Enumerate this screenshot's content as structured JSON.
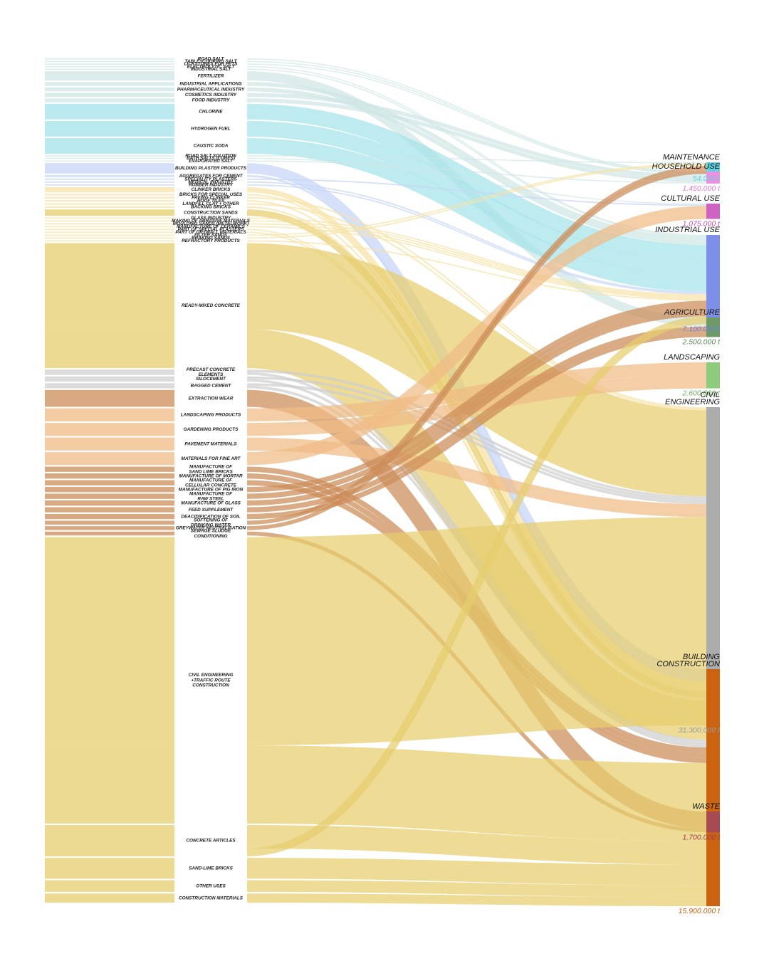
{
  "colors": {
    "salt": "#a3e3ea",
    "salt_light": "#cfe6e5",
    "gypsum": "#c6d6f7",
    "clay": "#f6e3a6",
    "sand_gravel": "#e6cd6e",
    "grey": "#cfcfcf",
    "peat": "#f0bb85",
    "limestone": "#cc8c57"
  },
  "applications": [
    {
      "id": "road-salt",
      "label": [
        "ROAD SALT"
      ],
      "color": "salt_light",
      "flows": [
        {
          "dest": "household",
          "v": 0.8
        }
      ]
    },
    {
      "id": "table-salt",
      "label": [
        "TABLE+COOKING SALT"
      ],
      "color": "salt_light",
      "flows": [
        {
          "dest": "household",
          "v": 0.8
        }
      ]
    },
    {
      "id": "lickstones",
      "label": [
        "LICKSTONES FOR PETS"
      ],
      "color": "salt_light",
      "flows": [
        {
          "dest": "household",
          "v": 0.8
        }
      ]
    },
    {
      "id": "electrolytic-salt",
      "label": [
        "ELECTROLYTIC SALT"
      ],
      "color": "salt_light",
      "flows": [
        {
          "dest": "industrial",
          "v": 0.8
        }
      ]
    },
    {
      "id": "industrial-salt",
      "label": [
        "INDUSTRIAL SALT"
      ],
      "color": "salt_light",
      "flows": [
        {
          "dest": "industrial",
          "v": 0.8
        }
      ]
    },
    {
      "id": "fertilizer",
      "label": [
        "FERTILIZER"
      ],
      "color": "salt_light",
      "flows": [
        {
          "dest": "agriculture",
          "v": 7
        }
      ]
    },
    {
      "id": "industrial-applications",
      "label": [
        "INDUSTRIAL APPLICATIONS"
      ],
      "color": "salt_light",
      "flows": [
        {
          "dest": "industrial",
          "v": 3
        }
      ]
    },
    {
      "id": "pharmaceutical",
      "label": [
        "PHARMACEUTICAL INDUSTRY"
      ],
      "color": "salt_light",
      "flows": [
        {
          "dest": "industrial",
          "v": 3
        }
      ]
    },
    {
      "id": "cosmetics",
      "label": [
        "COSMETICS INDUSTRY"
      ],
      "color": "salt_light",
      "flows": [
        {
          "dest": "household",
          "v": 3
        }
      ]
    },
    {
      "id": "food-industry",
      "label": [
        "FOOD INDUSTRY"
      ],
      "color": "salt_light",
      "flows": [
        {
          "dest": "household",
          "v": 3
        }
      ]
    },
    {
      "id": "chlorine",
      "label": [
        "CHLORINE"
      ],
      "color": "salt",
      "flows": [
        {
          "dest": "industrial",
          "v": 12
        }
      ]
    },
    {
      "id": "hydrogen-fuel",
      "label": [
        "HYDROGEN FUEL"
      ],
      "color": "salt",
      "flows": [
        {
          "dest": "industrial",
          "v": 12
        }
      ]
    },
    {
      "id": "caustic-soda",
      "label": [
        "CAUSTIC SODA"
      ],
      "color": "salt",
      "flows": [
        {
          "dest": "industrial",
          "v": 12
        }
      ]
    },
    {
      "id": "road-salt-solution",
      "label": [
        "ROAD SALT SOLUTION"
      ],
      "color": "salt_light",
      "flows": [
        {
          "dest": "maintenance",
          "v": 0.8
        }
      ]
    },
    {
      "id": "bath-salts",
      "label": [
        "BATH SALTS (CURES)"
      ],
      "color": "salt_light",
      "flows": [
        {
          "dest": "cultural",
          "v": 0.8
        }
      ]
    },
    {
      "id": "evaporated-salt",
      "label": [
        "EVAPORATED SALT"
      ],
      "color": "salt_light",
      "flows": [
        {
          "dest": "household",
          "v": 0.8
        }
      ]
    },
    {
      "id": "building-plaster",
      "label": [
        "BUILDING PLASTER PRODUCTS"
      ],
      "color": "gypsum",
      "flows": [
        {
          "dest": "building",
          "v": 8
        }
      ]
    },
    {
      "id": "aggregates-cement",
      "label": [
        "AGGREGATES FOR CEMENT"
      ],
      "color": "gypsum",
      "flows": [
        {
          "dest": "building",
          "v": 1.5
        }
      ]
    },
    {
      "id": "speciality-plasters",
      "label": [
        "SPECIALITY PLASTERS"
      ],
      "color": "gypsum",
      "flows": [
        {
          "dest": "cultural",
          "v": 1
        }
      ]
    },
    {
      "id": "medical-industry",
      "label": [
        "MEDICAL INDUSTRY"
      ],
      "color": "gypsum",
      "flows": [
        {
          "dest": "industrial",
          "v": 1
        }
      ]
    },
    {
      "id": "rubber-industry",
      "label": [
        "RUBBER INDUSTRY"
      ],
      "color": "gypsum",
      "flows": [
        {
          "dest": "industrial",
          "v": 1
        }
      ]
    },
    {
      "id": "clinker-bricks",
      "label": [
        "CLINKER BRICKS"
      ],
      "color": "clay",
      "flows": [
        {
          "dest": "building",
          "v": 4
        }
      ]
    },
    {
      "id": "bricks-special",
      "label": [
        "BRICKS FOR SPECIAL USES"
      ],
      "color": "clay",
      "flows": [
        {
          "dest": "building",
          "v": 1.2
        }
      ]
    },
    {
      "id": "paving-clinker",
      "label": [
        "PAVING CLINKER"
      ],
      "color": "clay",
      "flows": [
        {
          "dest": "civil",
          "v": 1.2
        }
      ]
    },
    {
      "id": "roof-tiles",
      "label": [
        "ROOF TILES"
      ],
      "color": "clay",
      "flows": [
        {
          "dest": "building",
          "v": 1.2
        }
      ]
    },
    {
      "id": "landfill-clay",
      "label": [
        "LANDFILL CLAY + OTHER"
      ],
      "color": "clay",
      "flows": [
        {
          "dest": "civil",
          "v": 1.2
        }
      ]
    },
    {
      "id": "backing-bricks",
      "label": [
        "BACKING BRICKS"
      ],
      "color": "clay",
      "flows": [
        {
          "dest": "building",
          "v": 1.2
        }
      ]
    },
    {
      "id": "construction-sands",
      "label": [
        "CONSTRUCTION SANDS"
      ],
      "color": "sand_gravel",
      "flows": [
        {
          "dest": "building",
          "v": 5
        }
      ]
    },
    {
      "id": "glass-industry",
      "label": [
        "GLASS INDUSTRY"
      ],
      "color": "clay",
      "flows": [
        {
          "dest": "industrial",
          "v": 1
        }
      ]
    },
    {
      "id": "abrasive-materials",
      "label": [
        "MAKING OF ABRASIVE MATERIALS"
      ],
      "color": "clay",
      "flows": [
        {
          "dest": "industrial",
          "v": 1
        }
      ]
    },
    {
      "id": "moulding-sands",
      "label": [
        "MOULDING SANDS (METALWORK)"
      ],
      "color": "clay",
      "flows": [
        {
          "dest": "industrial",
          "v": 1
        }
      ]
    },
    {
      "id": "manufacture-ceramics",
      "label": [
        "MANUFACTURE OF CERAMICS"
      ],
      "color": "clay",
      "flows": [
        {
          "dest": "industrial",
          "v": 1
        }
      ]
    },
    {
      "id": "special-plasters",
      "label": [
        "PART OF SPECIAL PLASTERS"
      ],
      "color": "clay",
      "flows": [
        {
          "dest": "building",
          "v": 1
        }
      ]
    },
    {
      "id": "drywall-materials",
      "label": [
        "PART OF DRYWALL MATERIALS"
      ],
      "color": "clay",
      "flows": [
        {
          "dest": "building",
          "v": 1
        }
      ]
    },
    {
      "id": "filter-sands",
      "label": [
        "FILTER SANDS"
      ],
      "color": "clay",
      "flows": [
        {
          "dest": "maintenance",
          "v": 1
        }
      ]
    },
    {
      "id": "braking-sands",
      "label": [
        "BRAKING SANDS"
      ],
      "color": "clay",
      "flows": [
        {
          "dest": "maintenance",
          "v": 1
        }
      ]
    },
    {
      "id": "refractory-products",
      "label": [
        "REFRACTORY PRODUCTS"
      ],
      "color": "clay",
      "flows": [
        {
          "dest": "industrial",
          "v": 1
        }
      ]
    },
    {
      "id": "ready-mixed-concrete",
      "label": [
        "READY-MIXED CONCRETE"
      ],
      "color": "sand_gravel",
      "flows": [
        {
          "dest": "civil",
          "v": 66
        },
        {
          "dest": "building",
          "v": 30
        }
      ]
    },
    {
      "id": "precast-concrete",
      "label": [
        "PRECAST CONCRETE",
        "ELEMENTS"
      ],
      "color": "grey",
      "flows": [
        {
          "dest": "civil",
          "v": 2
        },
        {
          "dest": "building",
          "v": 2
        }
      ]
    },
    {
      "id": "silocement",
      "label": [
        "SILOCEMENT"
      ],
      "color": "grey",
      "flows": [
        {
          "dest": "civil",
          "v": 2
        },
        {
          "dest": "building",
          "v": 2
        }
      ]
    },
    {
      "id": "bagged-cement",
      "label": [
        "BAGGED CEMENT"
      ],
      "color": "grey",
      "flows": [
        {
          "dest": "civil",
          "v": 2
        },
        {
          "dest": "building",
          "v": 2
        }
      ]
    },
    {
      "id": "extraction-wear",
      "label": [
        "EXTRACTION WEAR"
      ],
      "color": "limestone",
      "flows": [
        {
          "dest": "waste",
          "v": 13
        }
      ]
    },
    {
      "id": "landscaping-products",
      "label": [
        "LANDSCAPING PRODUCTS"
      ],
      "color": "peat",
      "flows": [
        {
          "dest": "landscaping",
          "v": 10
        }
      ]
    },
    {
      "id": "gardening-products",
      "label": [
        "GARDENING PRODUCTS"
      ],
      "color": "peat",
      "flows": [
        {
          "dest": "landscaping",
          "v": 10
        }
      ]
    },
    {
      "id": "pavement-materials",
      "label": [
        "PAVEMENT MATERIALS"
      ],
      "color": "peat",
      "flows": [
        {
          "dest": "civil",
          "v": 10
        }
      ]
    },
    {
      "id": "materials-fine-art",
      "label": [
        "MATERIALS FOR FINE ART"
      ],
      "color": "peat",
      "flows": [
        {
          "dest": "cultural",
          "v": 10
        }
      ]
    },
    {
      "id": "sand-lime-bricks-mfg",
      "label": [
        "MANUFACTURE OF",
        "SAND LIME BRICKS"
      ],
      "color": "limestone",
      "flows": [
        {
          "dest": "building",
          "v": 4
        }
      ]
    },
    {
      "id": "mortar-mfg",
      "label": [
        "MANUFACTURE OF MORTAR"
      ],
      "color": "limestone",
      "flows": [
        {
          "dest": "building",
          "v": 4
        }
      ]
    },
    {
      "id": "cellular-concrete-mfg",
      "label": [
        "MANUFACTURE OF",
        "CELLULAR CONCRETE"
      ],
      "color": "limestone",
      "flows": [
        {
          "dest": "building",
          "v": 4
        }
      ]
    },
    {
      "id": "pig-iron-mfg",
      "label": [
        "MANUFACTURE OF PIG IRON"
      ],
      "color": "limestone",
      "flows": [
        {
          "dest": "industrial",
          "v": 4
        }
      ]
    },
    {
      "id": "raw-steel-mfg",
      "label": [
        "MANUFACTURE OF",
        "RAW STEEL"
      ],
      "color": "limestone",
      "flows": [
        {
          "dest": "industrial",
          "v": 4
        }
      ]
    },
    {
      "id": "glass-mfg",
      "label": [
        "MANUFACTURE OF GLASS"
      ],
      "color": "limestone",
      "flows": [
        {
          "dest": "industrial",
          "v": 4
        }
      ]
    },
    {
      "id": "feed-supplement",
      "label": [
        "FEED SUPPLEMENT"
      ],
      "color": "limestone",
      "flows": [
        {
          "dest": "agriculture",
          "v": 4
        }
      ]
    },
    {
      "id": "deacidification-soil",
      "label": [
        "DEACIDIFICATION OF SOIL"
      ],
      "color": "limestone",
      "flows": [
        {
          "dest": "agriculture",
          "v": 4
        }
      ]
    },
    {
      "id": "softening-water",
      "label": [
        "SOFTENING OF",
        "DRINKING WATER"
      ],
      "color": "limestone",
      "flows": [
        {
          "dest": "maintenance",
          "v": 3
        }
      ]
    },
    {
      "id": "greywater-neutralisation",
      "label": [
        "GREYWATER NEUTRALISATION"
      ],
      "color": "limestone",
      "flows": [
        {
          "dest": "maintenance",
          "v": 3
        }
      ]
    },
    {
      "id": "sewage-sludge",
      "label": [
        "SEWAGE SLUDGE",
        "CONDITIONING"
      ],
      "color": "limestone",
      "flows": [
        {
          "dest": "waste",
          "v": 3
        }
      ]
    },
    {
      "id": "civil-engineering-construction",
      "label": [
        "CIVIL ENGINEERING",
        "+TRAFFIC ROUTE",
        "CONSTRUCTION"
      ],
      "color": "sand_gravel",
      "flows": [
        {
          "dest": "civil",
          "v": 160
        },
        {
          "dest": "building",
          "v": 60
        }
      ]
    },
    {
      "id": "concrete-articles",
      "label": [
        "CONCRETE ARTICLES"
      ],
      "color": "sand_gravel",
      "flows": [
        {
          "dest": "building",
          "v": 18
        },
        {
          "dest": "industrial",
          "v": 6
        }
      ]
    },
    {
      "id": "sand-lime-bricks",
      "label": [
        "SAND-LIME BRICKS"
      ],
      "color": "sand_gravel",
      "flows": [
        {
          "dest": "building",
          "v": 16
        }
      ]
    },
    {
      "id": "other-uses",
      "label": [
        "OTHER USES"
      ],
      "color": "sand_gravel",
      "flows": [
        {
          "dest": "building",
          "v": 9
        }
      ]
    },
    {
      "id": "construction-materials",
      "label": [
        "CONSTRUCTION MATERIALS"
      ],
      "color": "sand_gravel",
      "flows": [
        {
          "dest": "building",
          "v": 7
        }
      ]
    }
  ],
  "destinations": [
    {
      "id": "maintenance",
      "name": [
        "MAINTENANCE"
      ],
      "value": "54.000 t",
      "color": "#5fd2e0",
      "value_color": "#5fd2e0"
    },
    {
      "id": "household",
      "name": [
        "HOUSEHOLD USE"
      ],
      "value": "1.450.000 t",
      "color": "#ef8fe0",
      "value_color": "#e67bd6"
    },
    {
      "id": "cultural",
      "name": [
        "CULTURAL USE"
      ],
      "value": "1.075.000 t",
      "color": "#cf63c4",
      "value_color": "#c24db7"
    },
    {
      "id": "industrial",
      "name": [
        "INDUSTRIAL USE"
      ],
      "value": "7.100.000 t",
      "color": "#7e8fea",
      "value_color": "#6f7fdd"
    },
    {
      "id": "agriculture",
      "name": [
        "AGRICULTURE"
      ],
      "value": "2.500.000 t",
      "color": "#6e9a68",
      "value_color": "#5c8a56"
    },
    {
      "id": "landscaping",
      "name": [
        "LANDSCAPING"
      ],
      "value": "2.600.000 t",
      "color": "#8ccc7c",
      "value_color": "#6fae60"
    },
    {
      "id": "civil",
      "name": [
        "CIVIL",
        "ENGINEERING"
      ],
      "value": "31.300.000 t",
      "color": "#acacac",
      "value_color": "#9a9a9a"
    },
    {
      "id": "building",
      "name": [
        "BUILDING",
        "CONSTRUCTION"
      ],
      "value": "15.900.000 t",
      "color": "#cb6310",
      "value_color": "#c45e10"
    },
    {
      "id": "waste",
      "name": [
        "WASTE"
      ],
      "value": "1.700.000 t",
      "color": "#a84a52",
      "value_color": "#a23f49"
    }
  ]
}
